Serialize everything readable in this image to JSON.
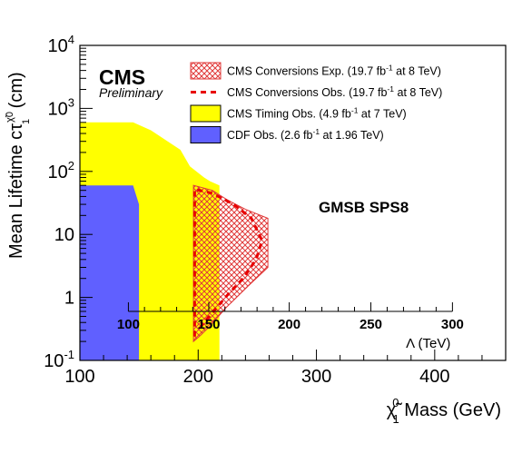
{
  "chart_data": {
    "type": "area",
    "title": "",
    "xlabel": {
      "pre": "",
      "symbol": "χ̃",
      "sup": "0",
      "sub": "1",
      "post": " Mass (GeV)"
    },
    "ylabel": {
      "pre": "Mean Lifetime  cτ",
      "sup": "χ̃0",
      "sub": "1",
      "post": " (cm)"
    },
    "xlim": [
      100,
      460
    ],
    "ylim": [
      0.1,
      10000
    ],
    "yscale": "log",
    "x_ticks": [
      "100",
      "200",
      "300",
      "400"
    ],
    "x_tick_values": [
      100,
      200,
      300,
      400
    ],
    "y_ticks": [
      {
        "base": "10",
        "exp": "-1",
        "value": 0.1
      },
      {
        "base": "1",
        "exp": "",
        "value": 1
      },
      {
        "base": "10",
        "exp": "",
        "value": 10
      },
      {
        "base": "10",
        "exp": "2",
        "value": 100
      },
      {
        "base": "10",
        "exp": "3",
        "value": 1000
      },
      {
        "base": "10",
        "exp": "4",
        "value": 10000
      }
    ],
    "secondary_axis": {
      "label": "Λ (TeV)",
      "ticks": [
        "100",
        "150",
        "200",
        "250",
        "300"
      ],
      "tick_values": [
        100,
        150,
        200,
        250,
        300
      ],
      "mass_at_tick": [
        141,
        209,
        277,
        346,
        415
      ],
      "y_position_value": 0.6
    },
    "logo": {
      "text": "CMS",
      "subtext": "Preliminary"
    },
    "annotation": "GMSB SPS8",
    "legend": {
      "placement": "top-right",
      "entries": [
        {
          "style": "hatch",
          "label": "CMS Conversions Exp. (19.7 fb",
          "sup": "-1",
          "tail": " at 8 TeV)",
          "color": "#e03a3a"
        },
        {
          "style": "dashed",
          "label": "CMS Conversions Obs. (19.7 fb",
          "sup": "-1",
          "tail": " at 8 TeV)",
          "color": "#e80000"
        },
        {
          "style": "fill",
          "label": "CMS Timing Obs. (4.9 fb",
          "sup": "-1",
          "tail": " at 7 TeV)",
          "color": "#ffff00"
        },
        {
          "style": "fill",
          "label": "CDF Obs. (2.6 fb",
          "sup": "-1",
          "tail": " at 1.96 TeV)",
          "color": "#6060ff"
        }
      ]
    },
    "series": [
      {
        "name": "CMS Timing Obs. (4.9 fb-1 at 7 TeV)",
        "kind": "polygon",
        "color": "#ffff00",
        "points": [
          [
            100,
            0.1
          ],
          [
            100,
            600
          ],
          [
            145,
            600
          ],
          [
            160,
            450
          ],
          [
            185,
            220
          ],
          [
            193,
            120
          ],
          [
            205,
            80
          ],
          [
            210,
            70
          ],
          [
            218,
            60
          ],
          [
            218,
            0.1
          ]
        ]
      },
      {
        "name": "CDF Obs. (2.6 fb-1 at 1.96 TeV)",
        "kind": "polygon",
        "color": "#6060ff",
        "points": [
          [
            100,
            0.1
          ],
          [
            100,
            60
          ],
          [
            145,
            60
          ],
          [
            150,
            30
          ],
          [
            150,
            0.1
          ]
        ]
      },
      {
        "name": "CMS Conversions Exp. (19.7 fb-1 at 8 TeV)",
        "kind": "hatched-polygon",
        "color": "#e03a3a",
        "points": [
          [
            196,
            0.2
          ],
          [
            196,
            60
          ],
          [
            212,
            50
          ],
          [
            225,
            35
          ],
          [
            240,
            25
          ],
          [
            259,
            18
          ],
          [
            259,
            3
          ],
          [
            242,
            1.5
          ],
          [
            224,
            0.7
          ],
          [
            210,
            0.35
          ],
          [
            202,
            0.25
          ]
        ]
      },
      {
        "name": "CMS Conversions Obs. (19.7 fb-1 at 8 TeV)",
        "kind": "dashed-line",
        "color": "#e80000",
        "points": [
          [
            197,
            0.24
          ],
          [
            197,
            52
          ],
          [
            212,
            45
          ],
          [
            230,
            30
          ],
          [
            245,
            18
          ],
          [
            254,
            8
          ],
          [
            249,
            4
          ],
          [
            238,
            2
          ],
          [
            225,
            1.1
          ],
          [
            213,
            0.6
          ],
          [
            205,
            0.4
          ],
          [
            200,
            0.3
          ]
        ]
      }
    ]
  }
}
